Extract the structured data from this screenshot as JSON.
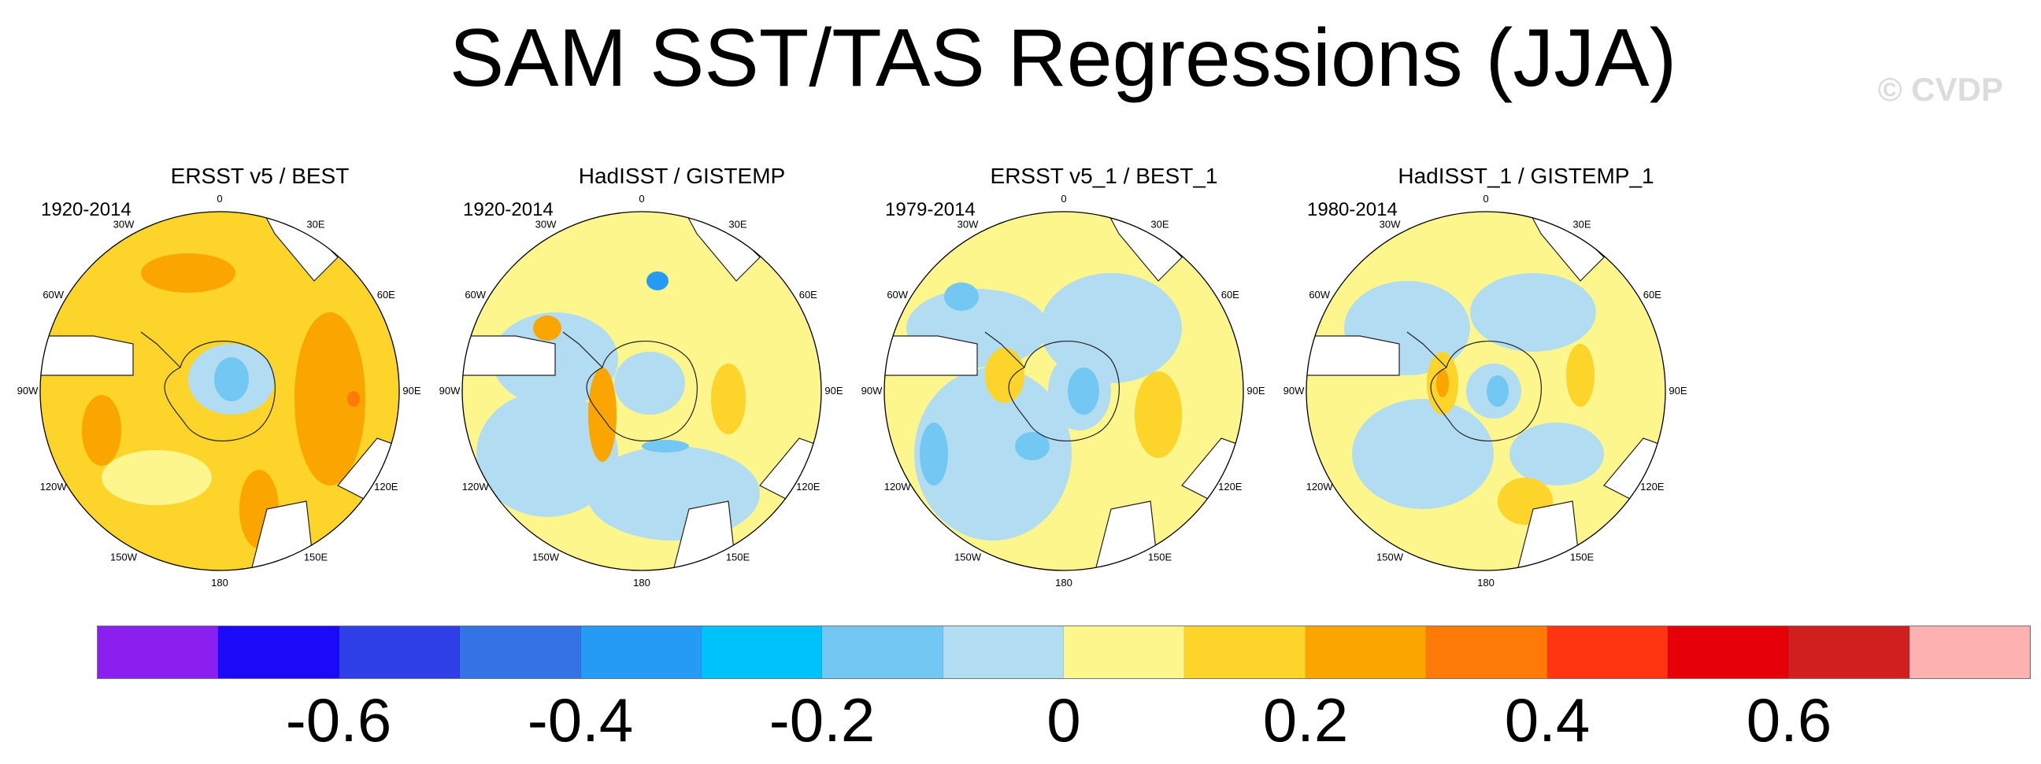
{
  "title": "SAM SST/TAS Regressions (JJA)",
  "watermark": "© CVDP",
  "map_labels": {
    "lon_0": "0",
    "lon_30e": "30E",
    "lon_60e": "60E",
    "lon_90e": "90E",
    "lon_120e": "120E",
    "lon_150e": "150E",
    "lon_180": "180",
    "lon_150w": "150W",
    "lon_120w": "120W",
    "lon_90w": "90W",
    "lon_60w": "60W",
    "lon_30w": "30W"
  },
  "panels": [
    {
      "title": "ERSST v5 / BEST",
      "period": "1920-2014",
      "dominant": "warm"
    },
    {
      "title": "HadISST / GISTEMP",
      "period": "1920-2014",
      "dominant": "mixed"
    },
    {
      "title": "ERSST v5_1 / BEST_1",
      "period": "1979-2014",
      "dominant": "mixed"
    },
    {
      "title": "HadISST_1 / GISTEMP_1",
      "period": "1980-2014",
      "dominant": "mixed"
    }
  ],
  "colorbar": {
    "colors": [
      "#8a1ff0",
      "#1a0af7",
      "#2f3fe8",
      "#3473e6",
      "#259bf5",
      "#00c2fa",
      "#72c8f2",
      "#b2dcf2",
      "#fdf68c",
      "#fcd42a",
      "#fba500",
      "#fd7a07",
      "#ff3410",
      "#e60007",
      "#d01f1f",
      "#fdb1b1"
    ],
    "tick_labels": [
      "-0.6",
      "-0.4",
      "-0.2",
      "0",
      "0.2",
      "0.4",
      "0.6"
    ]
  }
}
